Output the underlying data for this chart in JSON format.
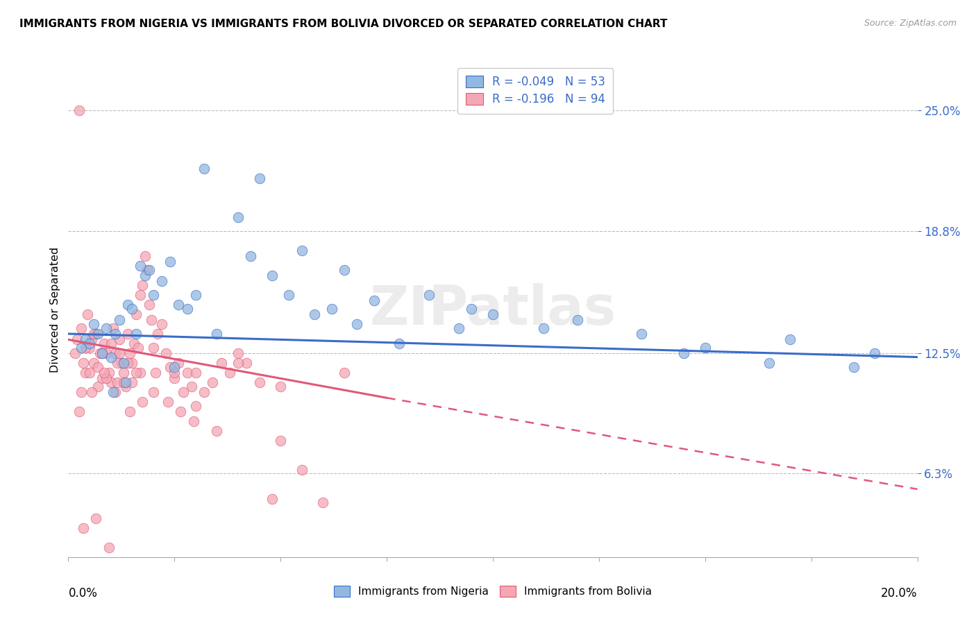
{
  "title": "IMMIGRANTS FROM NIGERIA VS IMMIGRANTS FROM BOLIVIA DIVORCED OR SEPARATED CORRELATION CHART",
  "source": "Source: ZipAtlas.com",
  "ylabel": "Divorced or Separated",
  "yticks": [
    6.3,
    12.5,
    18.8,
    25.0
  ],
  "ytick_labels": [
    "6.3%",
    "12.5%",
    "18.8%",
    "25.0%"
  ],
  "xmin": 0.0,
  "xmax": 20.0,
  "ymin": 2.0,
  "ymax": 27.5,
  "R_nigeria": -0.049,
  "N_nigeria": 53,
  "R_bolivia": -0.196,
  "N_bolivia": 94,
  "color_nigeria": "#92B8E0",
  "color_bolivia": "#F4A7B5",
  "color_nigeria_line": "#3A6CC8",
  "color_bolivia_line": "#E05878",
  "watermark": "ZIPatlas",
  "nig_line_x0": 0.0,
  "nig_line_y0": 13.5,
  "nig_line_x1": 20.0,
  "nig_line_y1": 12.3,
  "bol_line_x0": 0.0,
  "bol_line_y0": 13.2,
  "bol_line_x1_solid": 7.5,
  "bol_line_y1_solid": 10.2,
  "bol_line_x1_dash": 20.0,
  "bol_line_y1_dash": 5.5,
  "nigeria_x": [
    0.3,
    0.4,
    0.5,
    0.6,
    0.7,
    0.8,
    0.9,
    1.0,
    1.1,
    1.2,
    1.3,
    1.4,
    1.5,
    1.6,
    1.7,
    1.8,
    1.9,
    2.0,
    2.2,
    2.4,
    2.6,
    2.8,
    3.0,
    3.5,
    4.0,
    4.3,
    4.8,
    5.2,
    5.8,
    6.2,
    6.8,
    7.2,
    8.5,
    9.2,
    10.0,
    11.2,
    12.0,
    13.5,
    15.0,
    17.0,
    19.0,
    3.2,
    4.5,
    5.5,
    6.5,
    7.8,
    9.5,
    14.5,
    16.5,
    18.5,
    2.5,
    1.05,
    1.35
  ],
  "nigeria_y": [
    12.8,
    13.2,
    13.0,
    14.0,
    13.5,
    12.5,
    13.8,
    12.3,
    13.5,
    14.2,
    12.0,
    15.0,
    14.8,
    13.5,
    17.0,
    16.5,
    16.8,
    15.5,
    16.2,
    17.2,
    15.0,
    14.8,
    15.5,
    13.5,
    19.5,
    17.5,
    16.5,
    15.5,
    14.5,
    14.8,
    14.0,
    15.2,
    15.5,
    13.8,
    14.5,
    13.8,
    14.2,
    13.5,
    12.8,
    13.2,
    12.5,
    22.0,
    21.5,
    17.8,
    16.8,
    13.0,
    14.8,
    12.5,
    12.0,
    11.8,
    11.8,
    10.5,
    11.0
  ],
  "bolivia_x": [
    0.15,
    0.2,
    0.25,
    0.3,
    0.35,
    0.4,
    0.45,
    0.5,
    0.55,
    0.6,
    0.65,
    0.7,
    0.75,
    0.8,
    0.85,
    0.9,
    0.95,
    1.0,
    1.05,
    1.1,
    1.15,
    1.2,
    1.25,
    1.3,
    1.35,
    1.4,
    1.45,
    1.5,
    1.55,
    1.6,
    1.65,
    1.7,
    1.75,
    1.8,
    1.85,
    1.9,
    1.95,
    2.0,
    2.1,
    2.2,
    2.3,
    2.4,
    2.5,
    2.6,
    2.7,
    2.8,
    2.9,
    3.0,
    3.2,
    3.4,
    3.6,
    3.8,
    4.0,
    4.2,
    4.5,
    4.8,
    5.0,
    5.5,
    6.0,
    6.5,
    0.3,
    0.5,
    0.7,
    0.9,
    1.1,
    1.3,
    1.5,
    1.7,
    0.4,
    0.6,
    0.8,
    1.0,
    1.2,
    1.4,
    1.6,
    2.0,
    2.5,
    3.0,
    3.5,
    4.0,
    5.0,
    0.25,
    0.55,
    0.85,
    1.15,
    1.45,
    1.75,
    2.05,
    2.35,
    2.65,
    2.95,
    0.35,
    0.65,
    0.95
  ],
  "bolivia_y": [
    12.5,
    13.2,
    25.0,
    13.8,
    12.0,
    11.5,
    14.5,
    12.8,
    13.2,
    12.0,
    13.5,
    11.8,
    12.5,
    11.2,
    13.0,
    12.5,
    11.5,
    11.0,
    13.8,
    12.5,
    11.0,
    13.2,
    12.0,
    11.5,
    10.8,
    13.5,
    12.5,
    11.0,
    13.0,
    14.5,
    12.8,
    15.5,
    16.0,
    17.5,
    16.8,
    15.0,
    14.2,
    10.5,
    13.5,
    14.0,
    12.5,
    11.8,
    11.2,
    12.0,
    10.5,
    11.5,
    10.8,
    11.5,
    10.5,
    11.0,
    12.0,
    11.5,
    12.5,
    12.0,
    11.0,
    5.0,
    10.8,
    6.5,
    4.8,
    11.5,
    10.5,
    11.5,
    10.8,
    11.2,
    10.5,
    11.0,
    12.0,
    11.5,
    12.8,
    13.5,
    12.5,
    13.0,
    12.5,
    12.0,
    11.5,
    12.8,
    11.5,
    9.8,
    8.5,
    12.0,
    8.0,
    9.5,
    10.5,
    11.5,
    12.0,
    9.5,
    10.0,
    11.5,
    10.0,
    9.5,
    9.0,
    3.5,
    4.0,
    2.5
  ]
}
